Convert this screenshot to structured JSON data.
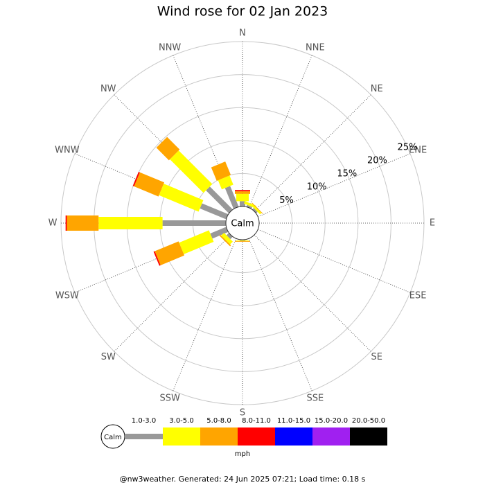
{
  "chart_data": {
    "type": "windrose",
    "title": "Wind rose for 02 Jan 2023",
    "directions": [
      "N",
      "NNE",
      "NE",
      "ENE",
      "E",
      "ESE",
      "SE",
      "SSE",
      "S",
      "SSW",
      "SW",
      "WSW",
      "W",
      "WNW",
      "NW",
      "NNW"
    ],
    "calm_label": "Calm",
    "rlim": [
      0,
      25
    ],
    "rticks": [
      {
        "value": 5,
        "label": "5%"
      },
      {
        "value": 10,
        "label": "10%"
      },
      {
        "value": 15,
        "label": "15%"
      },
      {
        "value": 20,
        "label": "20%"
      },
      {
        "value": 25,
        "label": "25%"
      }
    ],
    "series": [
      {
        "name": "1.0-3.0",
        "color": "#999999",
        "values": [
          0.8,
          0.3,
          0.3,
          0,
          0,
          0,
          0,
          0,
          0.1,
          0,
          0.5,
          2.6,
          9.6,
          4.3,
          4.9,
          3.4
        ]
      },
      {
        "name": "3.0-5.0",
        "color": "#ffff00",
        "values": [
          1.1,
          0.4,
          0.3,
          0,
          0,
          0,
          0,
          0,
          0.1,
          0,
          0.6,
          4.9,
          9.7,
          6.5,
          7.2,
          1.5
        ]
      },
      {
        "name": "5.0-8.0",
        "color": "#ffa500",
        "values": [
          0.4,
          0,
          0.1,
          0,
          0,
          0,
          0,
          0,
          0.1,
          0,
          0.2,
          3.9,
          4.8,
          4.0,
          2.7,
          2.2
        ]
      },
      {
        "name": "8.0-11.0",
        "color": "#ff0000",
        "values": [
          0.2,
          0,
          0,
          0,
          0,
          0,
          0,
          0,
          0,
          0,
          0,
          0.2,
          0.2,
          0.2,
          0,
          0
        ]
      },
      {
        "name": "11.0-15.0",
        "color": "#0000ff",
        "values": [
          0,
          0,
          0,
          0,
          0,
          0,
          0,
          0,
          0,
          0,
          0,
          0,
          0,
          0,
          0,
          0
        ]
      },
      {
        "name": "15.0-20.0",
        "color": "#a020f0",
        "values": [
          0,
          0,
          0,
          0,
          0,
          0,
          0,
          0,
          0,
          0,
          0,
          0,
          0,
          0,
          0,
          0
        ]
      },
      {
        "name": "20.0-50.0",
        "color": "#000000",
        "values": [
          0,
          0,
          0,
          0,
          0,
          0,
          0,
          0,
          0,
          0,
          0,
          0,
          0,
          0,
          0,
          0
        ]
      }
    ],
    "unit": "mph",
    "footer": "@nw3weather. Generated: 24 Jun 2025 07:21; Load time: 0.18 s"
  }
}
